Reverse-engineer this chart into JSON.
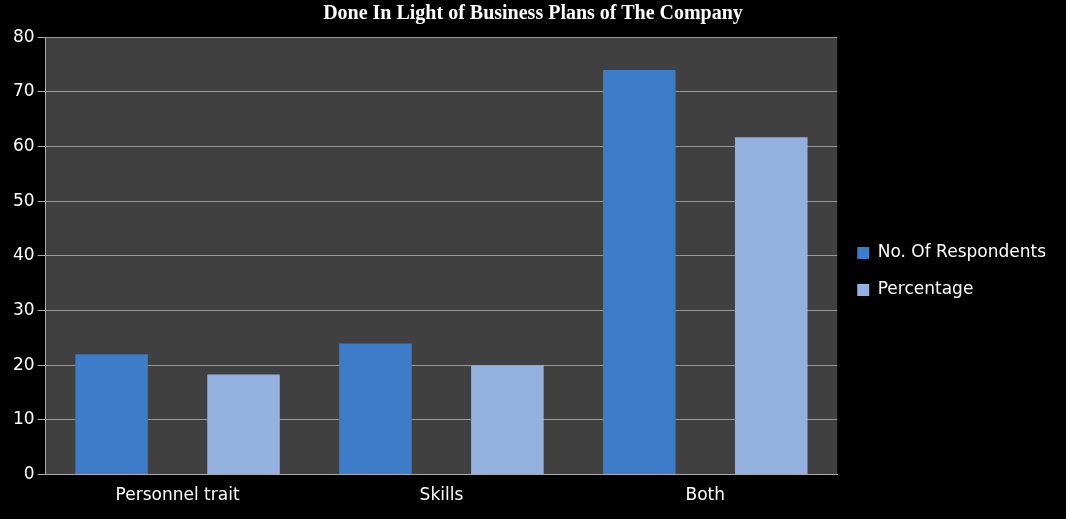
{
  "chart_data": {
    "type": "bar",
    "title": "Done In Light of Business Plans of The Company",
    "categories": [
      "Personnel trait",
      "Skills",
      "Both"
    ],
    "series": [
      {
        "name": "No. Of Respondents",
        "color": "#3d7cc9",
        "values": [
          22,
          24,
          74
        ]
      },
      {
        "name": "Percentage",
        "color": "#94b0de",
        "values": [
          18.3,
          20,
          61.7
        ]
      }
    ],
    "ylim": [
      0,
      80
    ],
    "yticks": [
      0,
      10,
      20,
      30,
      40,
      50,
      60,
      70,
      80
    ],
    "grid": "y",
    "legend": "right"
  }
}
